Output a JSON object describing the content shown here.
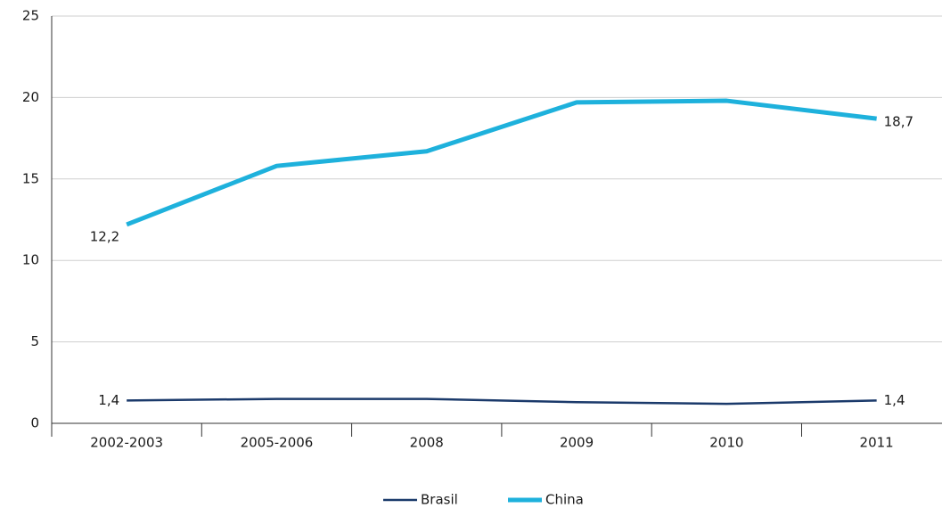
{
  "chart_data": {
    "type": "line",
    "categories": [
      "2002-2003",
      "2005-2006",
      "2008",
      "2009",
      "2010",
      "2011"
    ],
    "series": [
      {
        "name": "Brasil",
        "color": "#1b3a6b",
        "values": [
          1.4,
          1.5,
          1.5,
          1.3,
          1.2,
          1.4
        ],
        "value_labels": [
          "1,4",
          null,
          null,
          null,
          null,
          "1,4"
        ]
      },
      {
        "name": "China",
        "color": "#1eb1dc",
        "values": [
          12.2,
          15.8,
          16.7,
          19.7,
          19.8,
          18.7
        ],
        "value_labels": [
          "12,2",
          null,
          null,
          null,
          null,
          "18,7"
        ]
      }
    ],
    "ylim": [
      0,
      25
    ],
    "yticks": [
      0,
      5,
      10,
      15,
      20,
      25
    ],
    "grid": true,
    "legend": "bottom"
  }
}
